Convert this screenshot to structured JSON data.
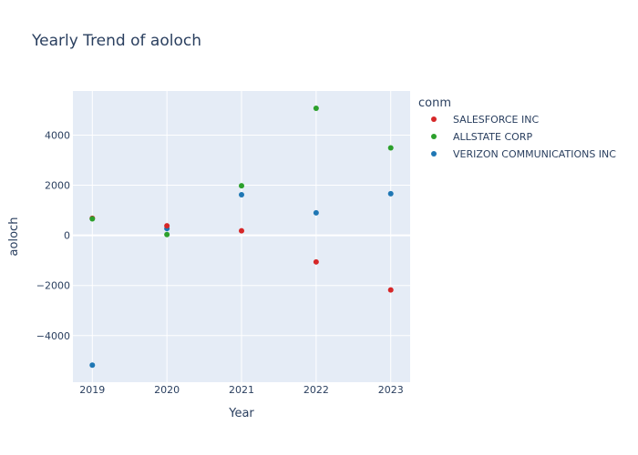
{
  "chart_data": {
    "type": "scatter",
    "title": "Yearly Trend of aoloch",
    "xlabel": "Year",
    "ylabel": "aoloch",
    "legend_title": "conm",
    "legend_position": "right",
    "grid": true,
    "x_ticks": [
      2019,
      2020,
      2021,
      2022,
      2023
    ],
    "y_ticks": [
      -4000,
      -2000,
      0,
      2000,
      4000
    ],
    "y_tick_labels": [
      "−4000",
      "−2000",
      "0",
      "2000",
      "4000"
    ],
    "xlim": [
      2018.74,
      2023.26
    ],
    "ylim": [
      -5860,
      5760
    ],
    "series": [
      {
        "name": "SALESFORCE INC",
        "color": "#d62728",
        "x": [
          2019,
          2020,
          2021,
          2022,
          2023
        ],
        "y": [
          680,
          380,
          180,
          -1060,
          -2180
        ]
      },
      {
        "name": "ALLSTATE CORP",
        "color": "#2ca02c",
        "x": [
          2019,
          2020,
          2021,
          2022,
          2023
        ],
        "y": [
          660,
          30,
          1980,
          5070,
          3490
        ]
      },
      {
        "name": "VERIZON COMMUNICATIONS INC",
        "color": "#1f77b4",
        "x": [
          2019,
          2020,
          2021,
          2022,
          2023
        ],
        "y": [
          -5180,
          270,
          1620,
          900,
          1660
        ]
      }
    ]
  }
}
